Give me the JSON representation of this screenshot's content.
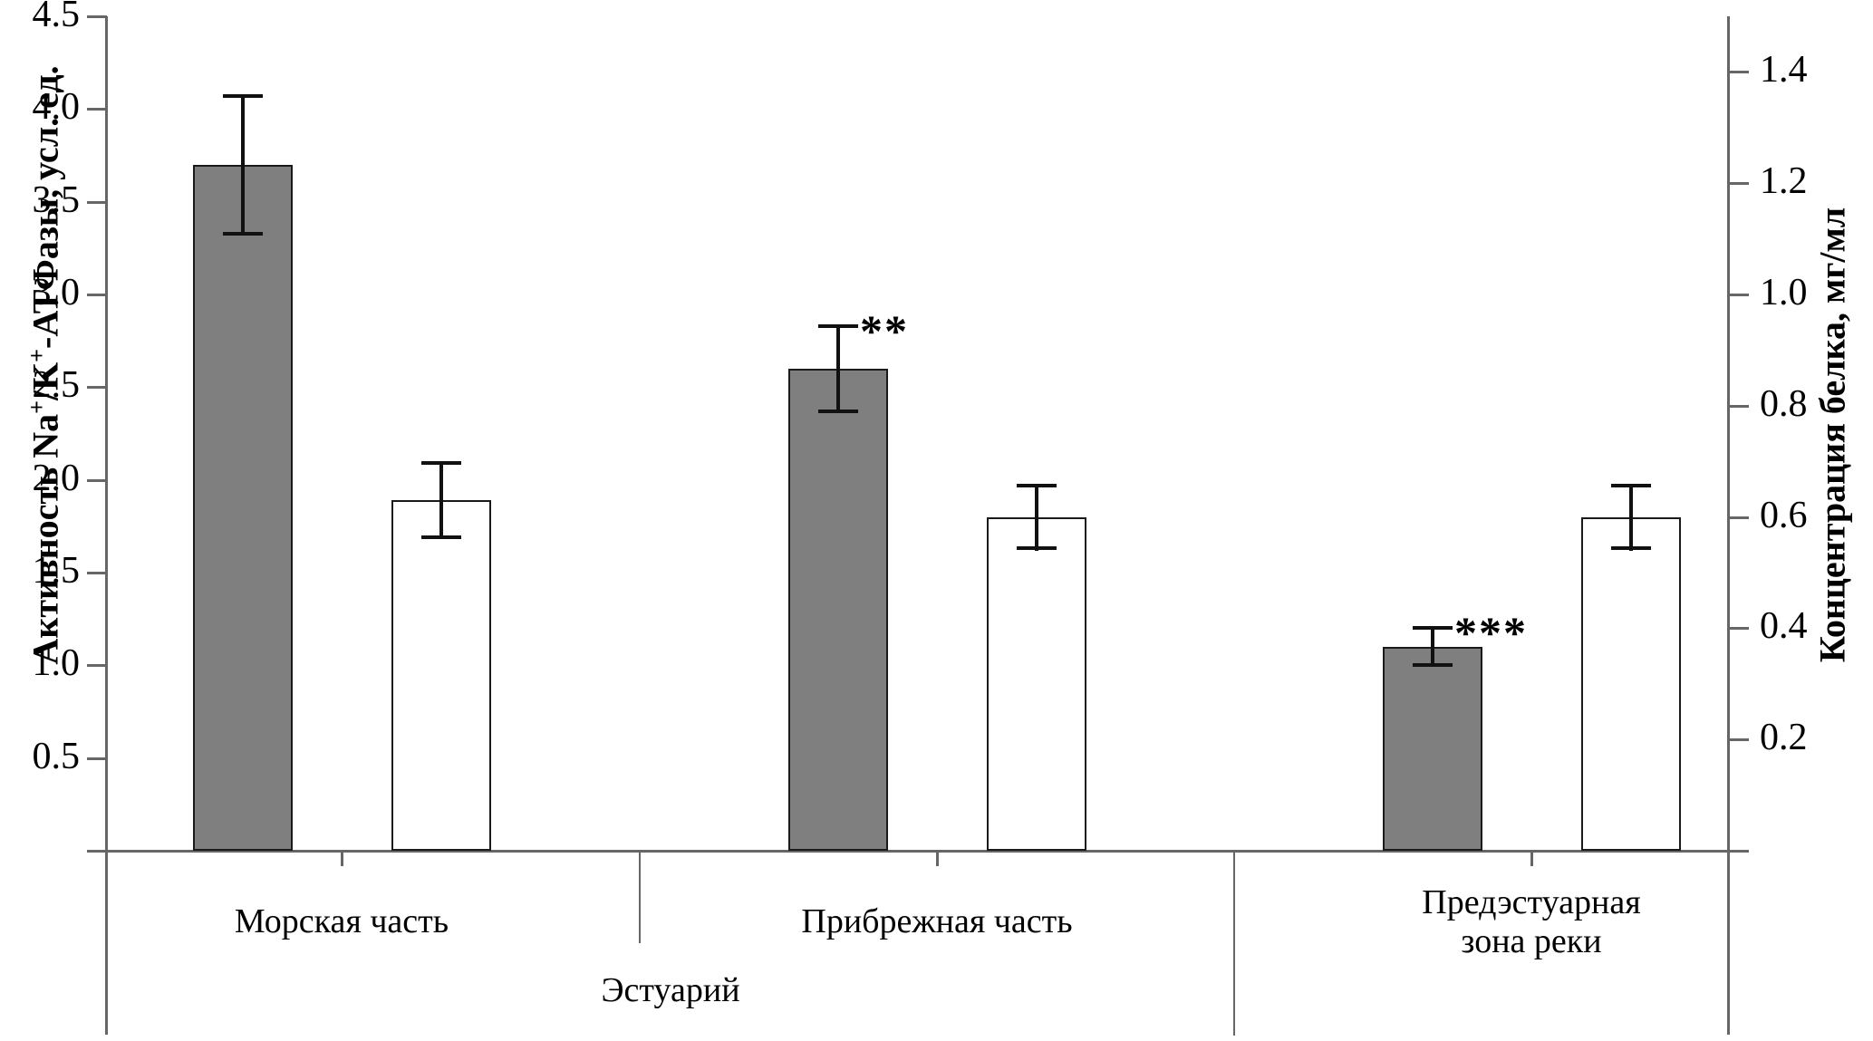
{
  "titles": {
    "left": [
      "Активность Na",
      "+",
      "/K",
      "+",
      "-АТФазы, усл. ед."
    ],
    "right": "Концентрация белка, мг/мл"
  },
  "x_axis": {
    "category_lines": [
      [
        "Морская часть"
      ],
      [
        "Прибрежная часть"
      ],
      [
        "Предэстуарная",
        "зона реки"
      ]
    ],
    "group_label": "Эстуарий"
  },
  "chart_data": {
    "type": "bar",
    "title": "",
    "categories": [
      "Морская часть",
      "Прибрежная часть",
      "Предэстуарная зона реки"
    ],
    "group_label": "Эстуарий",
    "group_span_categories": [
      0,
      1
    ],
    "grid": false,
    "legend": false,
    "left_axis": {
      "label": "Активность Na+/K+-АТФазы, усл. ед.",
      "min": 0,
      "max": 4.5,
      "tick_step": 0.5,
      "tick_labels": [
        "0.5",
        "1.0",
        "1.5",
        "2.0",
        "2.5",
        "3.0",
        "3.5",
        "4.0",
        "4.5"
      ]
    },
    "right_axis": {
      "label": "Концентрация белка, мг/мл",
      "min": 0,
      "max": 1.5,
      "tick_step": 0.2,
      "tick_labels": [
        "0.2",
        "0.4",
        "0.6",
        "0.8",
        "1.0",
        "1.2",
        "1.4"
      ]
    },
    "series": [
      {
        "name": "Активность Na+/K+-АТФазы, усл. ед.",
        "axis": "left",
        "fill": "#7f7f7f",
        "values": [
          3.7,
          2.6,
          1.1
        ],
        "errors": [
          0.38,
          0.24,
          0.11
        ],
        "significance": [
          "",
          "**",
          "***"
        ]
      },
      {
        "name": "Концентрация белка, мг/мл",
        "axis": "right",
        "fill": "#ffffff",
        "values": [
          0.63,
          0.6,
          0.6
        ],
        "errors": [
          0.07,
          0.06,
          0.06
        ],
        "significance": [
          "",
          "",
          ""
        ]
      }
    ]
  }
}
